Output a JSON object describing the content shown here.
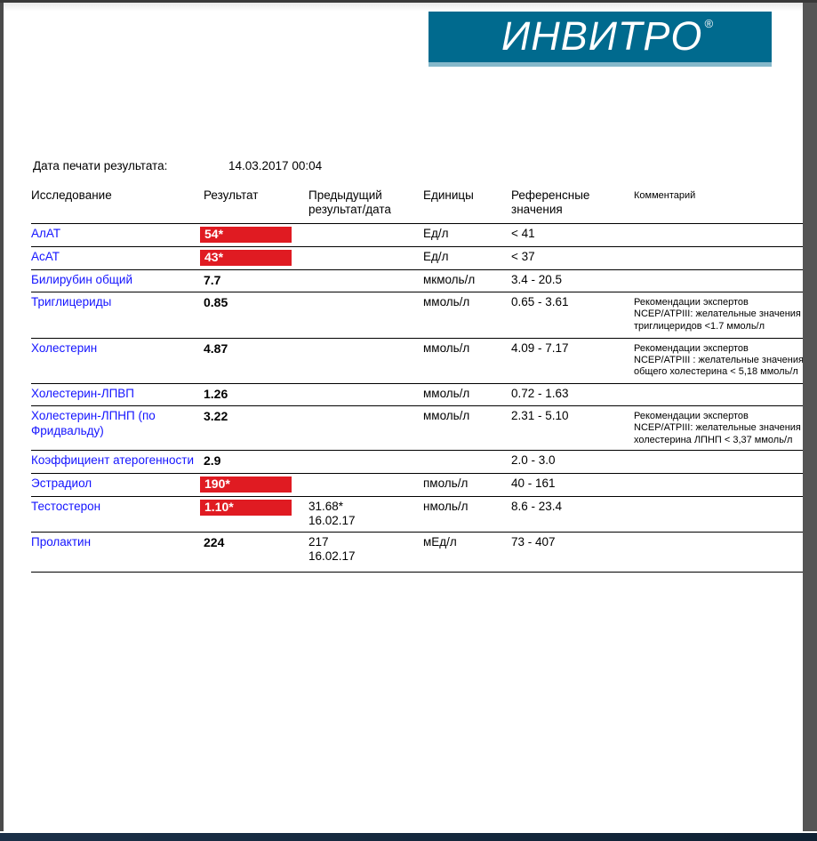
{
  "logo": {
    "text": "ИНВИТРО",
    "reg": "®"
  },
  "header": {
    "print_date_label": "Дата печати результата:",
    "print_date_value": "14.03.2017 00:04"
  },
  "table": {
    "columns": {
      "name": "Исследование",
      "result": "Результат",
      "prev": "Предыдущий результат/дата",
      "units": "Единицы",
      "ref": "Референсные значения",
      "comment": "Комментарий"
    },
    "rows": [
      {
        "name": "АлАТ",
        "result": "54*",
        "flagged": true,
        "prev": "",
        "prev_date": "",
        "units": "Ед/л",
        "ref": "< 41",
        "comment": ""
      },
      {
        "name": "АсАТ",
        "result": "43*",
        "flagged": true,
        "prev": "",
        "prev_date": "",
        "units": "Ед/л",
        "ref": "< 37",
        "comment": ""
      },
      {
        "name": "Билирубин общий",
        "result": "7.7",
        "flagged": false,
        "prev": "",
        "prev_date": "",
        "units": "мкмоль/л",
        "ref": "3.4 - 20.5",
        "comment": ""
      },
      {
        "name": "Триглицериды",
        "result": "0.85",
        "flagged": false,
        "prev": "",
        "prev_date": "",
        "units": "ммоль/л",
        "ref": "0.65 - 3.61",
        "comment": "Рекомендации экспертов NCEP/ATPIII: желательные значения триглицеридов <1.7 ммоль/л",
        "rowclass": "row-lipids"
      },
      {
        "name": "Холестерин",
        "result": "4.87",
        "flagged": false,
        "prev": "",
        "prev_date": "",
        "units": "ммоль/л",
        "ref": "4.09 - 7.17",
        "comment": "Рекомендации экспертов NCEP/ATPIII : желательные значения общего холестерина < 5,18 ммоль/л",
        "rowclass": "row-chol"
      },
      {
        "name": "Холестерин-ЛПВП",
        "result": "1.26",
        "flagged": false,
        "prev": "",
        "prev_date": "",
        "units": "ммоль/л",
        "ref": "0.72 - 1.63",
        "comment": ""
      },
      {
        "name": "Холестерин-ЛПНП (по Фридвальду)",
        "result": "3.22",
        "flagged": false,
        "prev": "",
        "prev_date": "",
        "units": "ммоль/л",
        "ref": "2.31 - 5.10",
        "comment": "Рекомендации экспертов NCEP/ATPIII: желательные значения холестерина ЛПНП < 3,37 ммоль/л"
      },
      {
        "name": "Коэффициент атерогенности",
        "result": "2.9",
        "flagged": false,
        "prev": "",
        "prev_date": "",
        "units": "",
        "ref": "2.0 - 3.0",
        "comment": "",
        "rowclass": "row-koef"
      },
      {
        "name": "Эстрадиол",
        "result": "190*",
        "flagged": true,
        "prev": "",
        "prev_date": "",
        "units": "пмоль/л",
        "ref": "40 - 161",
        "comment": ""
      },
      {
        "name": "Тестостерон",
        "result": "1.10*",
        "flagged": true,
        "prev": "31.68*",
        "prev_date": "16.02.17",
        "units": "нмоль/л",
        "ref": "8.6 - 23.4",
        "comment": ""
      },
      {
        "name": "Пролактин",
        "result": "224",
        "flagged": false,
        "prev": "217",
        "prev_date": "16.02.17",
        "units": "мЕд/л",
        "ref": "73 - 407",
        "comment": "",
        "rowclass": "row-prolactin"
      }
    ]
  },
  "colors": {
    "brand_teal": "#006a8e",
    "flag_red": "#e01b22",
    "test_name_blue": "#1414ff",
    "frame_navy": "#122639"
  }
}
